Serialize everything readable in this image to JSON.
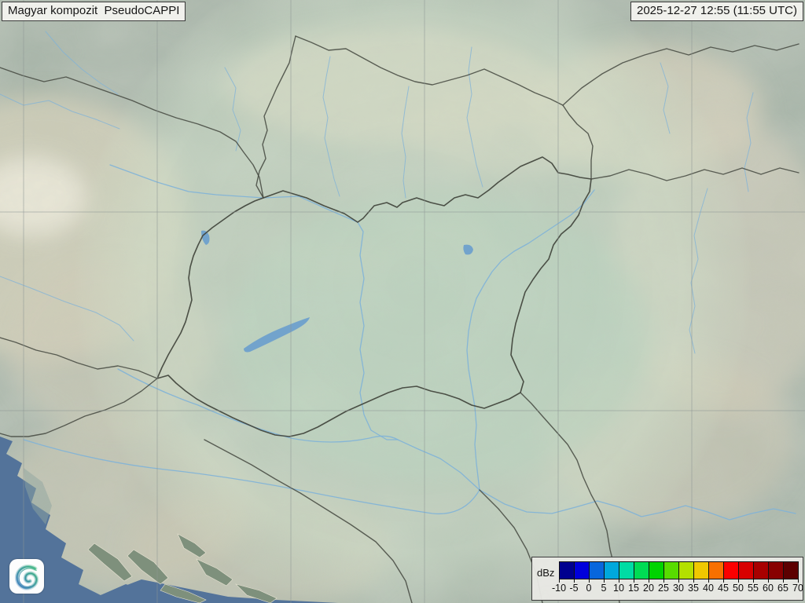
{
  "product": {
    "title": "Magyar kompozit  PseudoCAPPI",
    "timestamp": "2025-12-27 12:55 (11:55 UTC)"
  },
  "legend": {
    "unit": "dBz",
    "ticks": [
      "-10",
      "-5",
      "0",
      "5",
      "10",
      "15",
      "20",
      "25",
      "30",
      "35",
      "40",
      "45",
      "50",
      "55",
      "60",
      "65",
      "70"
    ],
    "colors": [
      "#00008f",
      "#0000dc",
      "#0866dc",
      "#00a8dc",
      "#00dca4",
      "#00dc54",
      "#00d400",
      "#58dc00",
      "#b4e000",
      "#f0c800",
      "#f87000",
      "#fc0000",
      "#d80000",
      "#a80000",
      "#880000",
      "#5c0000"
    ]
  },
  "logo": {
    "name": "hungaromet-spiral-logo",
    "gradient_start": "#3cb87c",
    "gradient_end": "#3a79c0"
  },
  "map": {
    "description": "Topographic basemap of the Carpathian Basin with radar coverage circle",
    "colors": {
      "base": "#a4b2a6",
      "basin": "#a9c6b6",
      "inside_circle": "#cfe2cd",
      "mountain": "#d8d3bd",
      "highland_light": "#efecdd",
      "sea": "#53739a",
      "river": "#7fb2d8",
      "lake": "#72a3cc",
      "border": "#44483f",
      "grid": "#8d9694"
    }
  }
}
